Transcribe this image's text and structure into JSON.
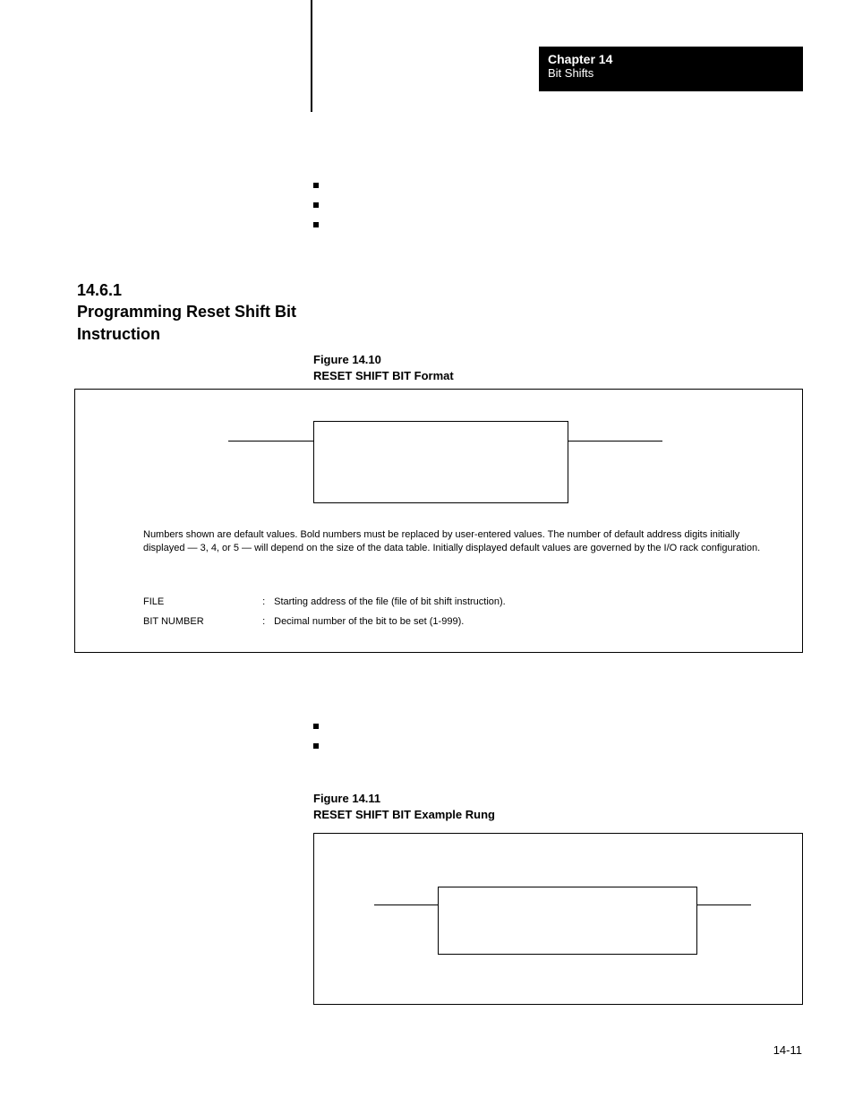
{
  "header": {
    "chapter": "Chapter 14",
    "subtitle": "Bit Shifts"
  },
  "section": {
    "number": "14.6.1",
    "title_line1": "Programming Reset Shift Bit",
    "title_line2": "Instruction"
  },
  "figure10": {
    "label_line1": "Figure 14.10",
    "label_line2": "RESET SHIFT BIT Format",
    "note": "Numbers shown are default values.  Bold numbers must be replaced by user-entered values.  The number of default address digits initially displayed — 3, 4, or 5 — will depend on the size of the data table.  Initially displayed default values are governed by the I/O rack configuration.",
    "rows": [
      {
        "label": "FILE",
        "desc": "Starting address of the file (file of bit shift instruction)."
      },
      {
        "label": "BIT NUMBER",
        "desc": "Decimal number of the bit to be set (1-999)."
      }
    ]
  },
  "figure11": {
    "label_line1": "Figure 14.11",
    "label_line2": "RESET SHIFT BIT Example Rung"
  },
  "page_number": "14-11",
  "colors": {
    "text": "#000000",
    "bg": "#ffffff",
    "header_bg": "#000000",
    "header_text": "#ffffff"
  }
}
